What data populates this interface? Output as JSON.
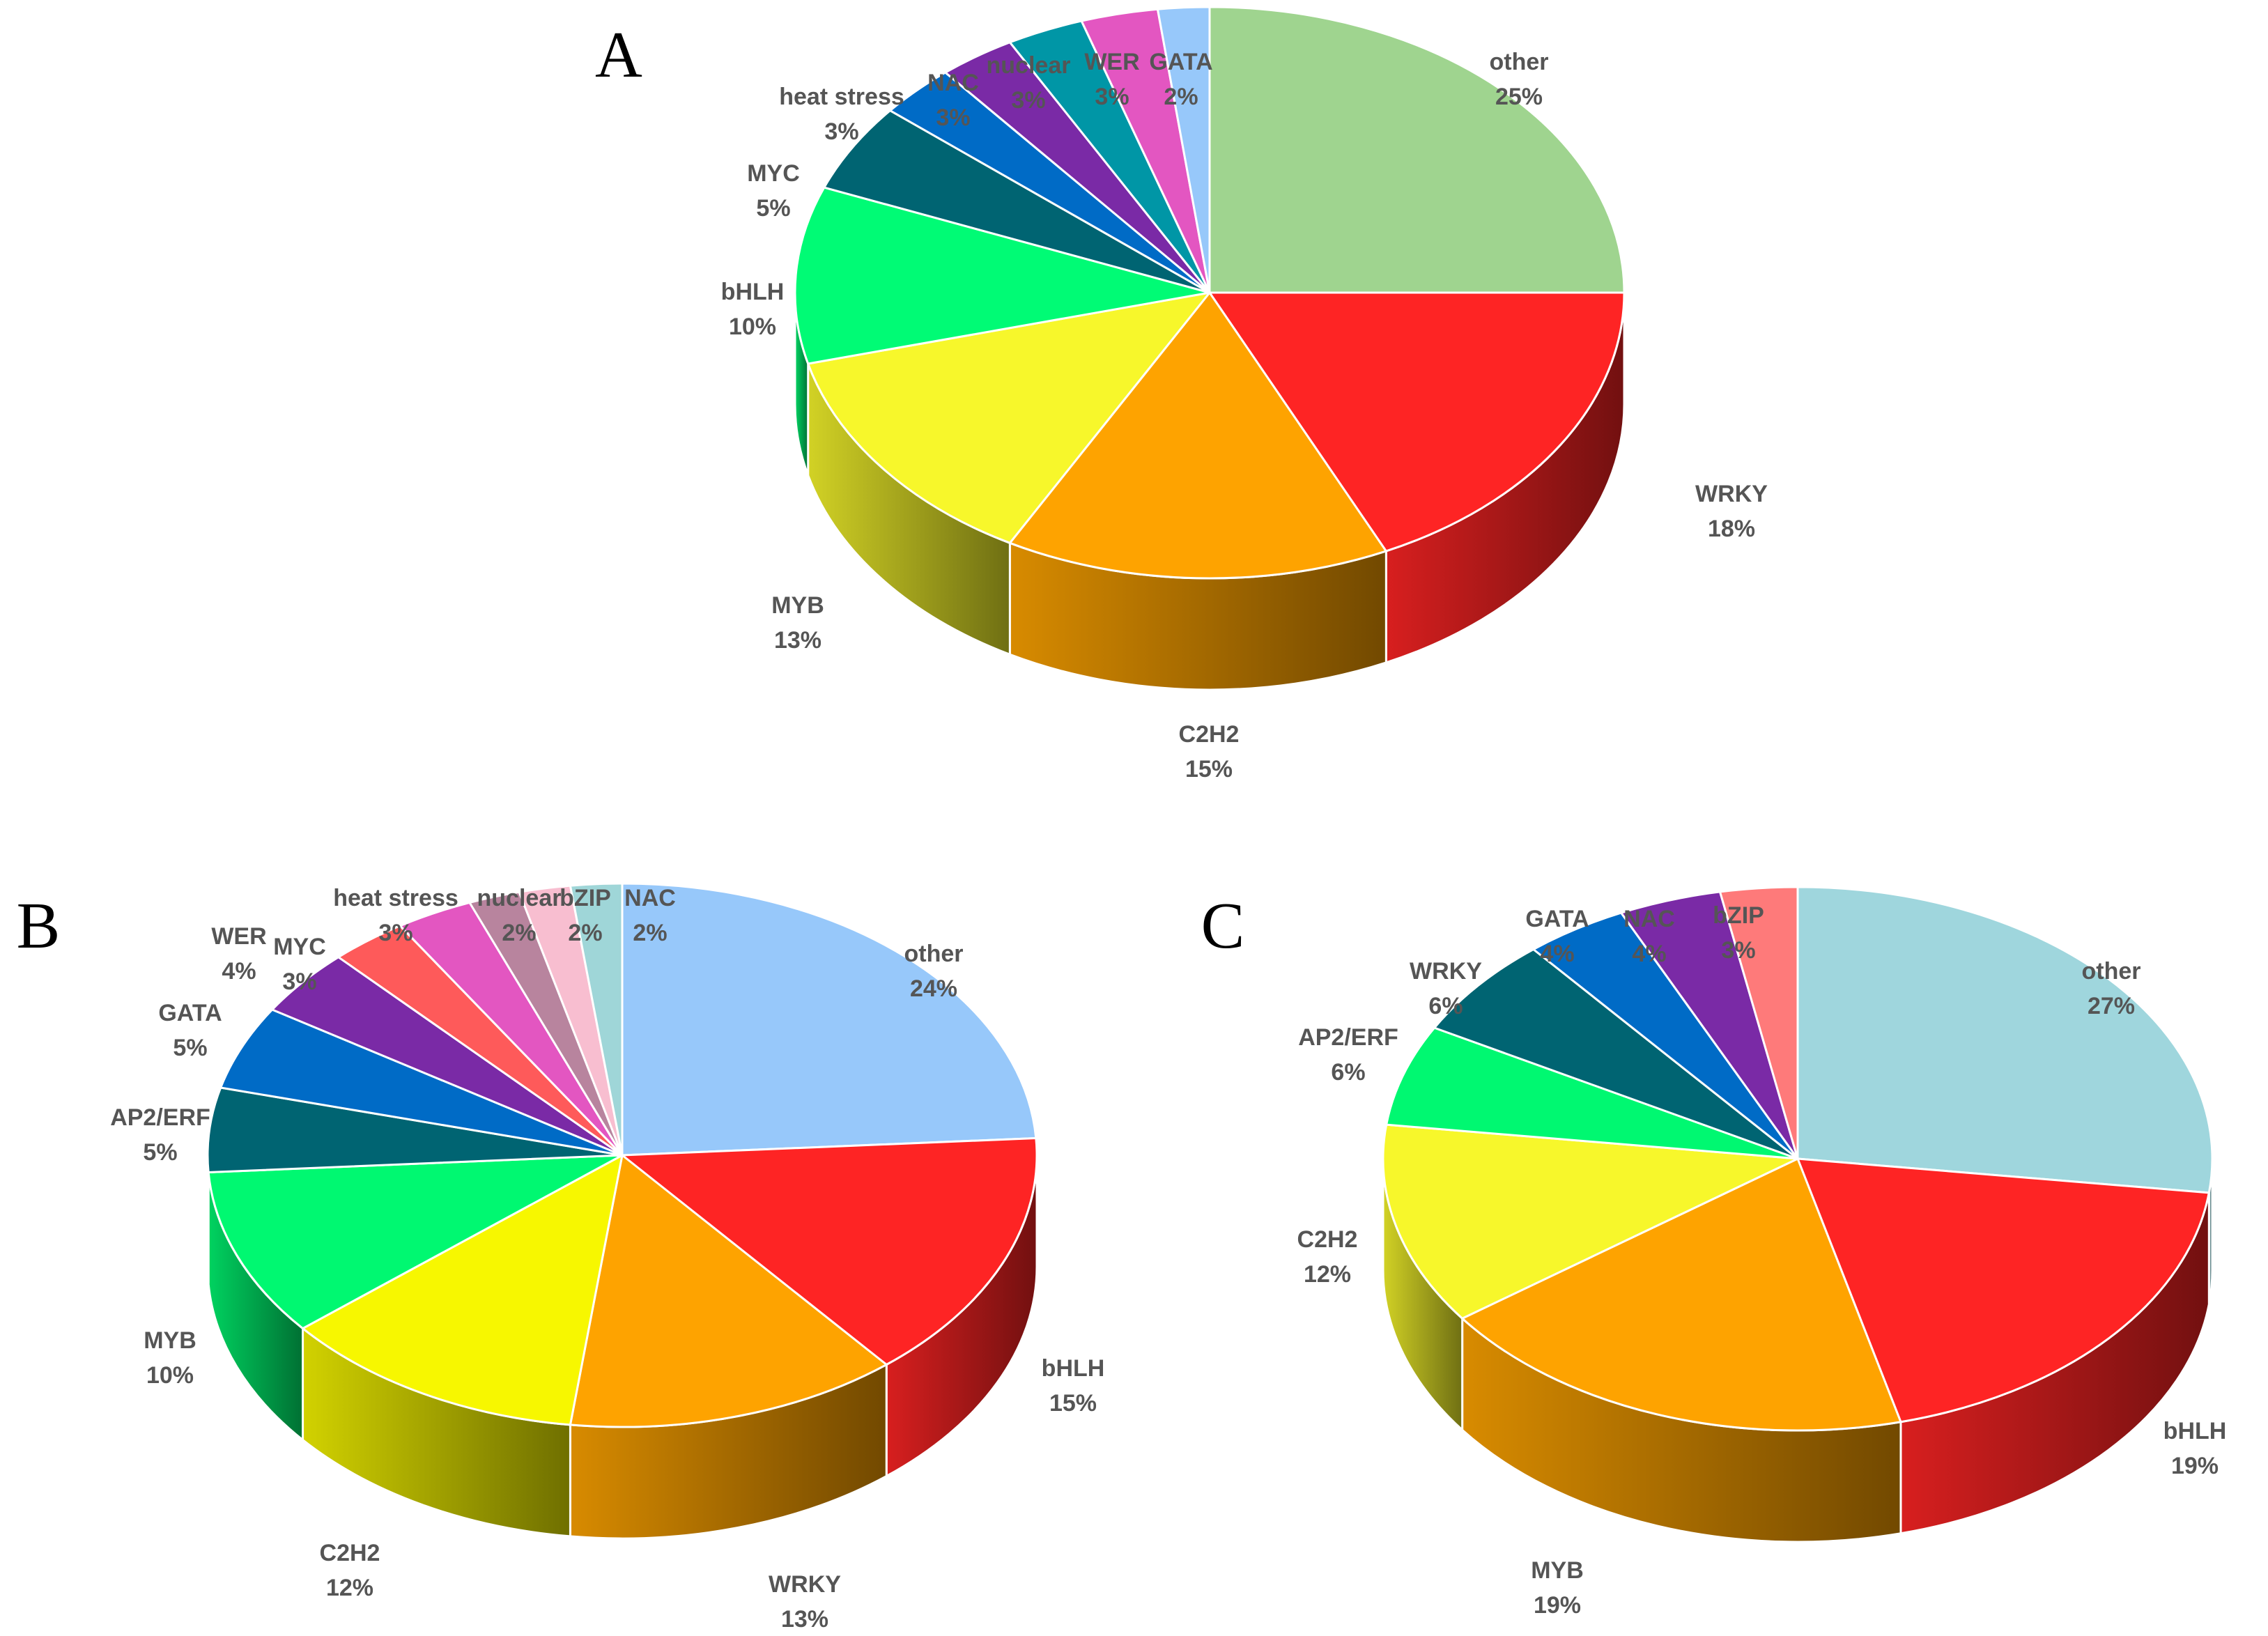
{
  "chart_data": [
    {
      "type": "pie",
      "variant": "3d",
      "panel": "A",
      "slices": [
        {
          "label": "other",
          "percent": "25%",
          "value": 25,
          "color": "#9fd48f"
        },
        {
          "label": "WRKY",
          "percent": "18%",
          "value": 18,
          "color": "#fe2424"
        },
        {
          "label": "C2H2",
          "percent": "15%",
          "value": 15,
          "color": "#fea300"
        },
        {
          "label": "MYB",
          "percent": "13%",
          "value": 13,
          "color": "#f7f72b"
        },
        {
          "label": "bHLH",
          "percent": "10%",
          "value": 10,
          "color": "#00fb75"
        },
        {
          "label": "MYC",
          "percent": "5%",
          "value": 5,
          "color": "#006472"
        },
        {
          "label": "heat stress",
          "percent": "3%",
          "value": 3,
          "color": "#006bc6"
        },
        {
          "label": "NAC",
          "percent": "3%",
          "value": 3,
          "color": "#7a2aa6"
        },
        {
          "label": "nuclear",
          "percent": "3%",
          "value": 3,
          "color": "#0096a6"
        },
        {
          "label": "WER",
          "percent": "3%",
          "value": 3,
          "color": "#e356c1"
        },
        {
          "label": "GATA",
          "percent": "2%",
          "value": 2,
          "color": "#97c8fa"
        }
      ]
    },
    {
      "type": "pie",
      "variant": "3d",
      "panel": "B",
      "slices": [
        {
          "label": "other",
          "percent": "24%",
          "value": 24,
          "color": "#97c8fa"
        },
        {
          "label": "bHLH",
          "percent": "15%",
          "value": 15,
          "color": "#fe2424"
        },
        {
          "label": "WRKY",
          "percent": "13%",
          "value": 13,
          "color": "#fea300"
        },
        {
          "label": "C2H2",
          "percent": "12%",
          "value": 12,
          "color": "#f7f700"
        },
        {
          "label": "MYB",
          "percent": "10%",
          "value": 10,
          "color": "#00f871"
        },
        {
          "label": "AP2/ERF",
          "percent": "5%",
          "value": 5,
          "color": "#006472"
        },
        {
          "label": "GATA",
          "percent": "5%",
          "value": 5,
          "color": "#006bc6"
        },
        {
          "label": "WER",
          "percent": "4%",
          "value": 4,
          "color": "#7a2aa6"
        },
        {
          "label": "MYC",
          "percent": "3%",
          "value": 3,
          "color": "#fe5a5a"
        },
        {
          "label": "heat stress",
          "percent": "3%",
          "value": 3,
          "color": "#e356c1"
        },
        {
          "label": "nuclear",
          "percent": "2%",
          "value": 2,
          "color": "#b8849e"
        },
        {
          "label": "bZIP",
          "percent": "2%",
          "value": 2,
          "color": "#f8bed0"
        },
        {
          "label": "NAC",
          "percent": "2%",
          "value": 2,
          "color": "#9fd6d8"
        }
      ]
    },
    {
      "type": "pie",
      "variant": "3d",
      "panel": "C",
      "slices": [
        {
          "label": "other",
          "percent": "27%",
          "value": 27,
          "color": "#9fd6dd"
        },
        {
          "label": "bHLH",
          "percent": "19%",
          "value": 19,
          "color": "#fe2424"
        },
        {
          "label": "MYB",
          "percent": "19%",
          "value": 19,
          "color": "#fea300"
        },
        {
          "label": "C2H2",
          "percent": "12%",
          "value": 12,
          "color": "#f7f72b"
        },
        {
          "label": "AP2/ERF",
          "percent": "6%",
          "value": 6,
          "color": "#00f871"
        },
        {
          "label": "WRKY",
          "percent": "6%",
          "value": 6,
          "color": "#006472"
        },
        {
          "label": "GATA",
          "percent": "4%",
          "value": 4,
          "color": "#006bc6"
        },
        {
          "label": "NAC",
          "percent": "4%",
          "value": 4,
          "color": "#7a2aa6"
        },
        {
          "label": "bZIP",
          "percent": "3%",
          "value": 3,
          "color": "#fe7a7a"
        }
      ]
    }
  ]
}
